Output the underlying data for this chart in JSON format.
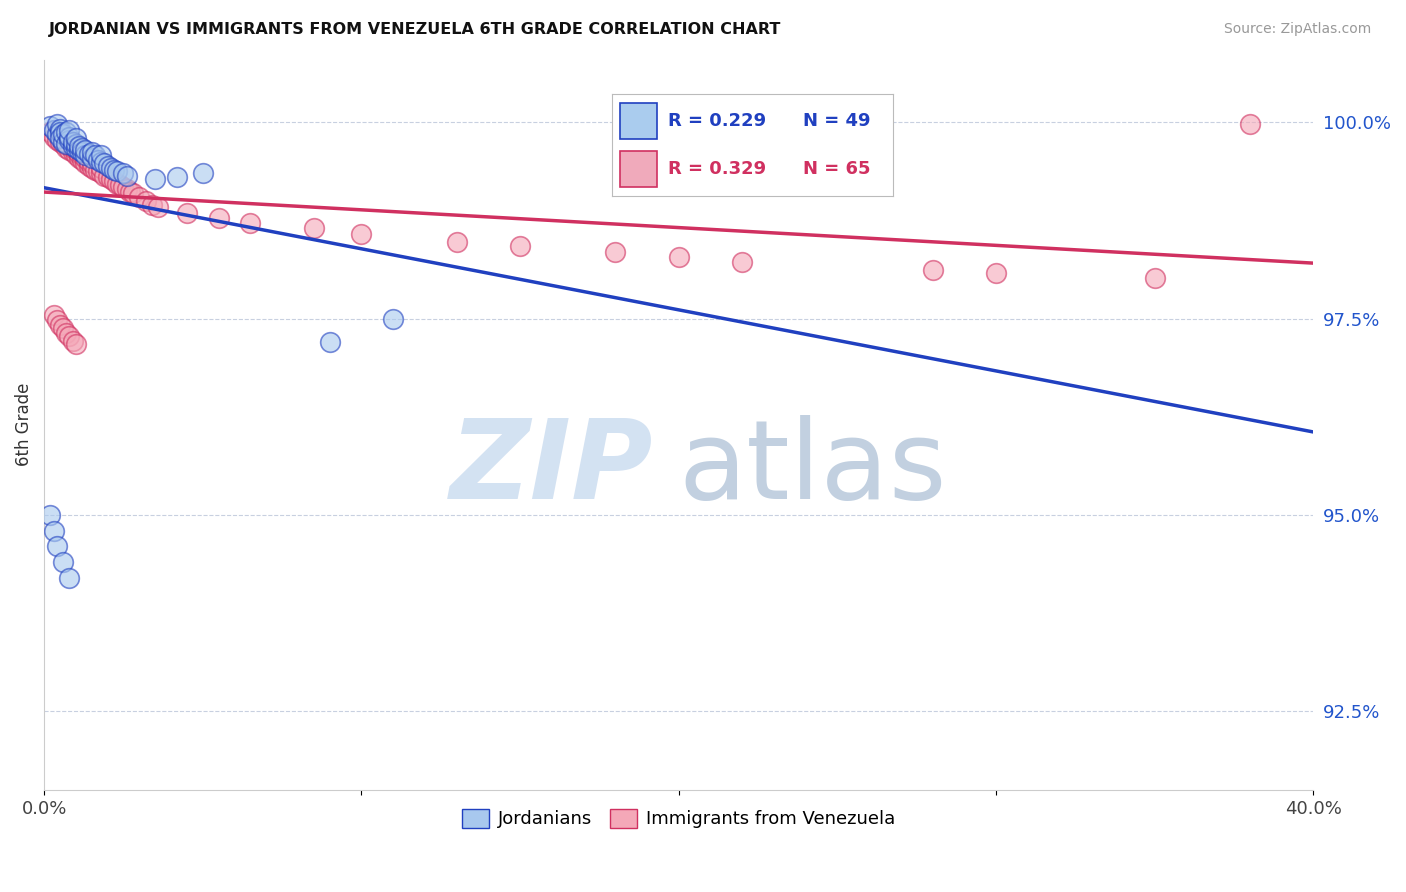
{
  "title": "JORDANIAN VS IMMIGRANTS FROM VENEZUELA 6TH GRADE CORRELATION CHART",
  "source": "Source: ZipAtlas.com",
  "ylabel": "6th Grade",
  "ylabel_right_labels": [
    "100.0%",
    "97.5%",
    "95.0%",
    "92.5%"
  ],
  "ylabel_right_values": [
    1.0,
    0.975,
    0.95,
    0.925
  ],
  "xlim": [
    0.0,
    0.4
  ],
  "ylim": [
    0.915,
    1.008
  ],
  "blue_color": "#a8c8ee",
  "pink_color": "#f4a8b8",
  "blue_line_color": "#2040c0",
  "pink_line_color": "#d03060",
  "legend_blue_R": "R = 0.229",
  "legend_blue_N": "N = 49",
  "legend_pink_R": "R = 0.329",
  "legend_pink_N": "N = 65",
  "jordanians_x": [
    0.002,
    0.003,
    0.004,
    0.004,
    0.005,
    0.005,
    0.005,
    0.006,
    0.006,
    0.007,
    0.007,
    0.008,
    0.008,
    0.008,
    0.009,
    0.009,
    0.01,
    0.01,
    0.01,
    0.011,
    0.011,
    0.012,
    0.012,
    0.013,
    0.013,
    0.014,
    0.015,
    0.015,
    0.016,
    0.017,
    0.018,
    0.018,
    0.019,
    0.02,
    0.021,
    0.022,
    0.023,
    0.025,
    0.026,
    0.035,
    0.042,
    0.05,
    0.09,
    0.11,
    0.002,
    0.003,
    0.004,
    0.006,
    0.008
  ],
  "jordanians_y": [
    0.9995,
    0.999,
    0.9985,
    0.9998,
    0.9992,
    0.9988,
    0.998,
    0.9975,
    0.9985,
    0.9988,
    0.9972,
    0.9978,
    0.9982,
    0.999,
    0.997,
    0.9975,
    0.9968,
    0.9972,
    0.998,
    0.9965,
    0.997,
    0.9962,
    0.9968,
    0.9958,
    0.9965,
    0.996,
    0.9955,
    0.9962,
    0.9958,
    0.9952,
    0.995,
    0.9958,
    0.9948,
    0.9945,
    0.9942,
    0.994,
    0.9938,
    0.9935,
    0.9932,
    0.9928,
    0.993,
    0.9935,
    0.972,
    0.975,
    0.95,
    0.948,
    0.946,
    0.944,
    0.942
  ],
  "venezuela_x": [
    0.002,
    0.003,
    0.004,
    0.005,
    0.005,
    0.006,
    0.006,
    0.007,
    0.007,
    0.008,
    0.008,
    0.009,
    0.009,
    0.01,
    0.01,
    0.011,
    0.011,
    0.012,
    0.012,
    0.013,
    0.013,
    0.014,
    0.014,
    0.015,
    0.015,
    0.016,
    0.017,
    0.018,
    0.018,
    0.019,
    0.02,
    0.021,
    0.022,
    0.023,
    0.024,
    0.025,
    0.026,
    0.027,
    0.028,
    0.03,
    0.032,
    0.034,
    0.036,
    0.045,
    0.055,
    0.065,
    0.085,
    0.1,
    0.13,
    0.15,
    0.18,
    0.2,
    0.22,
    0.28,
    0.3,
    0.35,
    0.38,
    0.003,
    0.004,
    0.005,
    0.006,
    0.007,
    0.008,
    0.009,
    0.01
  ],
  "venezuela_y": [
    0.9988,
    0.9982,
    0.9978,
    0.9985,
    0.9975,
    0.998,
    0.9972,
    0.9968,
    0.9975,
    0.9965,
    0.997,
    0.9962,
    0.9968,
    0.9958,
    0.9965,
    0.9955,
    0.996,
    0.9952,
    0.9958,
    0.9948,
    0.9955,
    0.9945,
    0.995,
    0.9942,
    0.9948,
    0.994,
    0.9938,
    0.9935,
    0.9942,
    0.9932,
    0.993,
    0.9928,
    0.9925,
    0.9922,
    0.992,
    0.9918,
    0.9915,
    0.9912,
    0.991,
    0.9905,
    0.99,
    0.9895,
    0.9892,
    0.9885,
    0.9878,
    0.9872,
    0.9865,
    0.9858,
    0.9848,
    0.9842,
    0.9835,
    0.9828,
    0.9822,
    0.9812,
    0.9808,
    0.9802,
    0.9998,
    0.9755,
    0.9748,
    0.9742,
    0.9738,
    0.9732,
    0.9728,
    0.9722,
    0.9718
  ]
}
